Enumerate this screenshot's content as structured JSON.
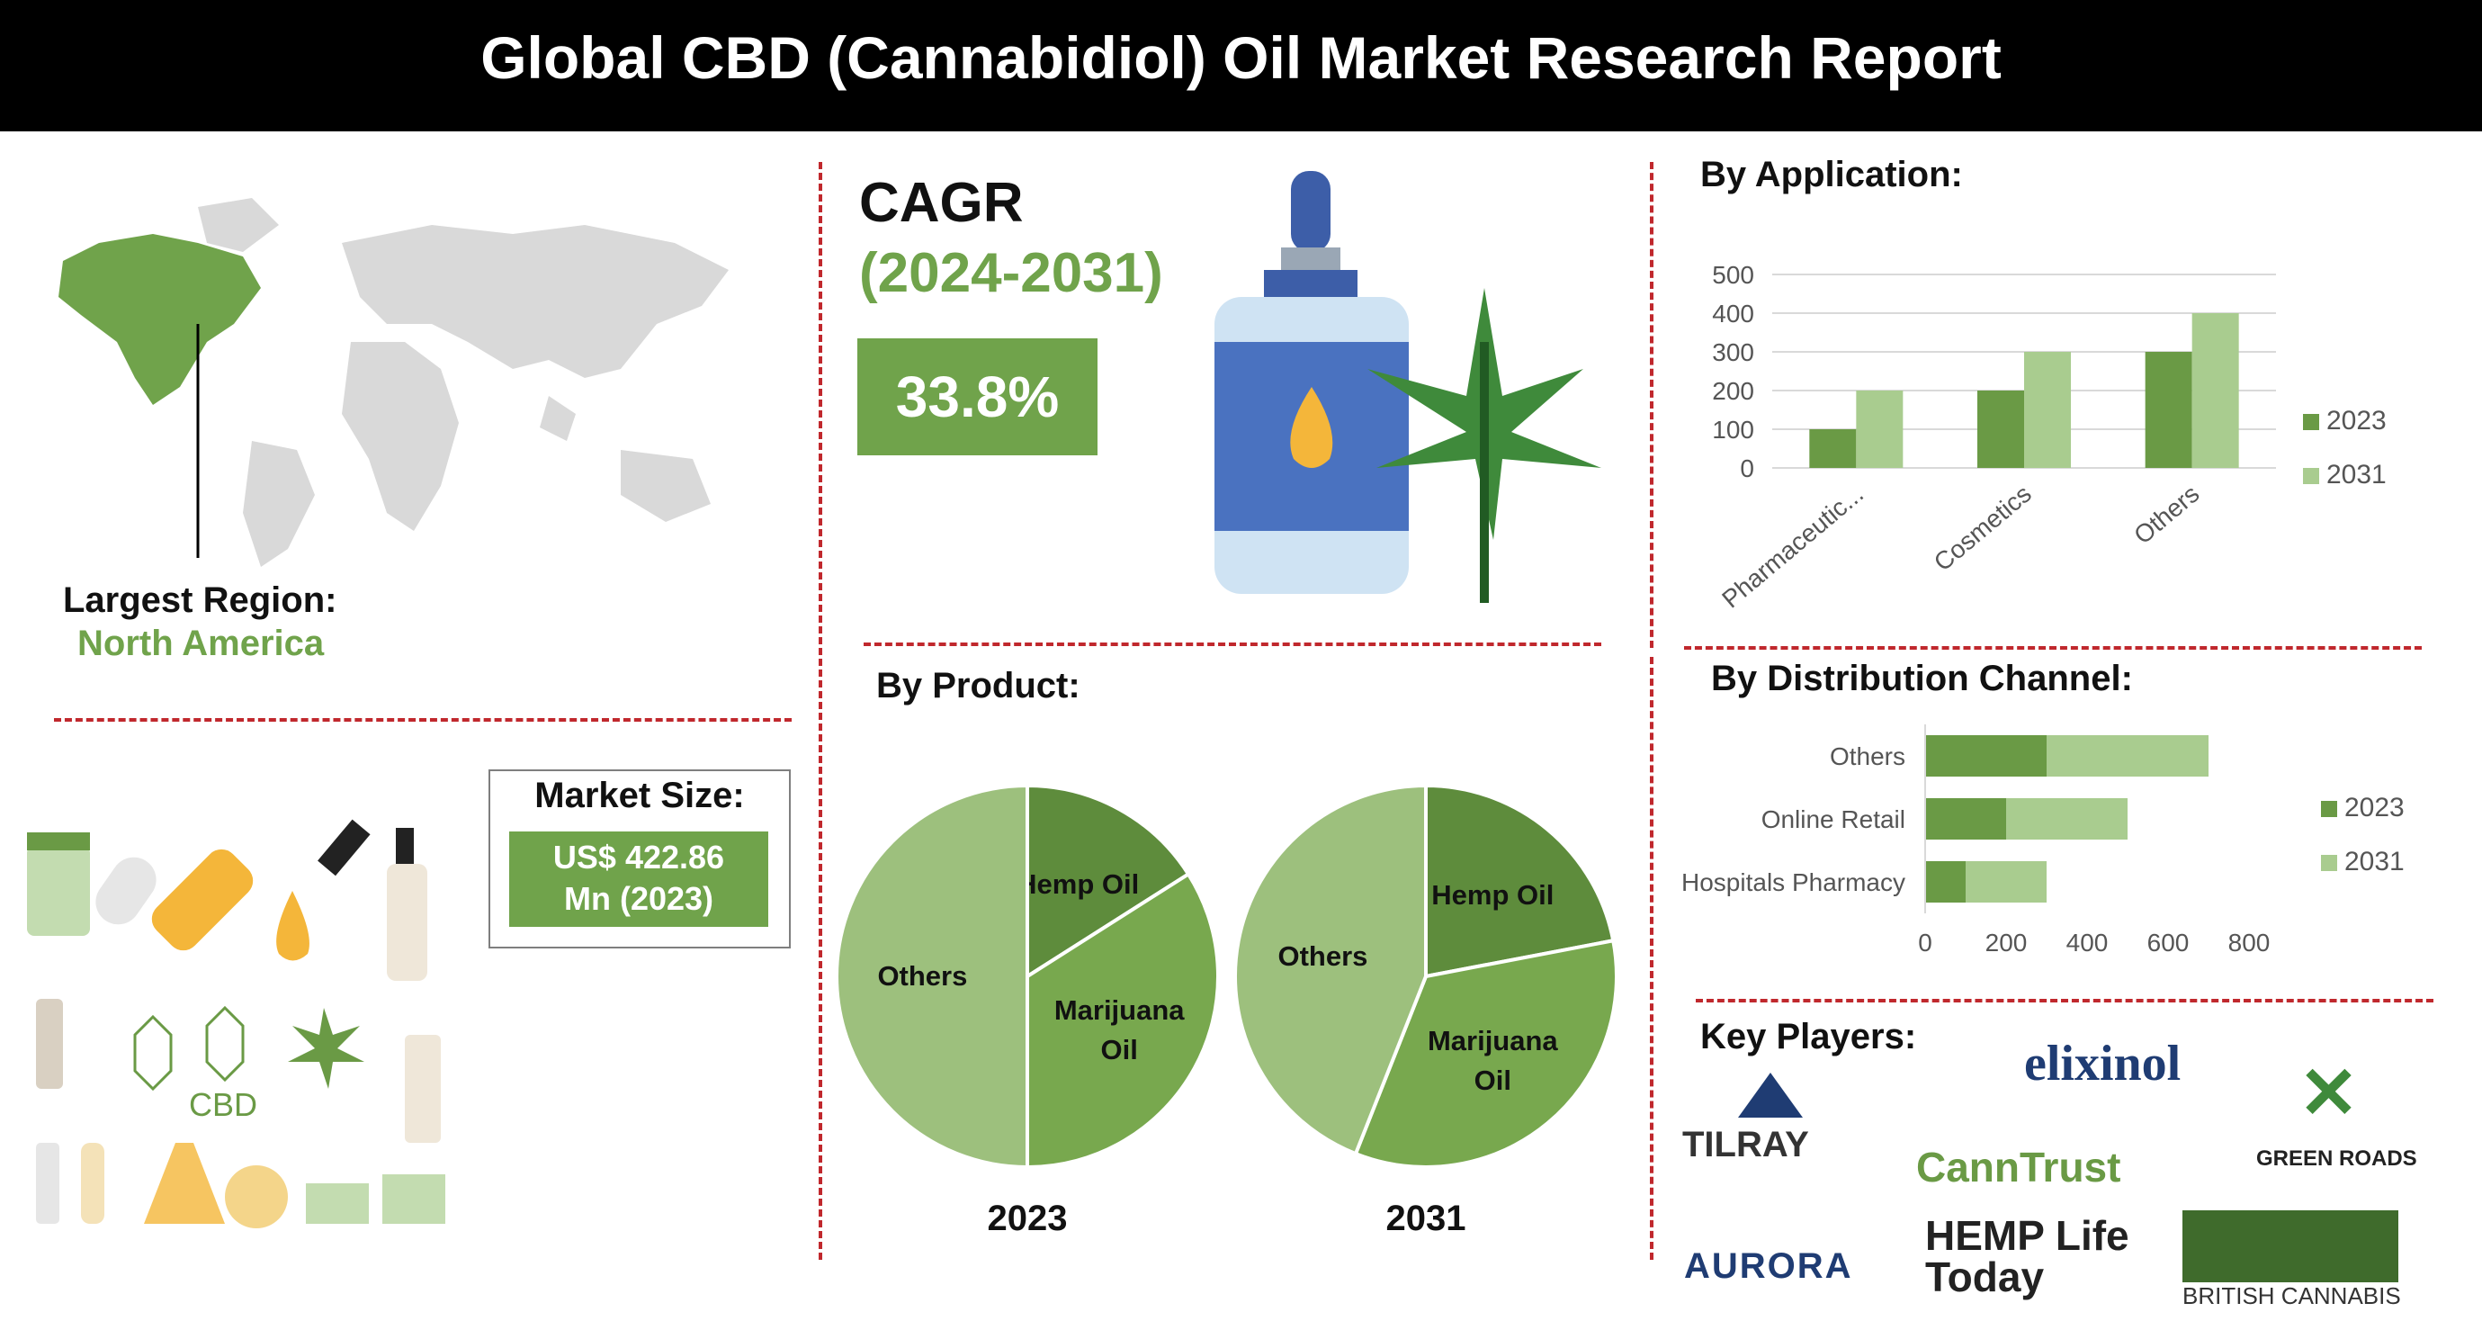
{
  "header": {
    "title": "Global CBD (Cannabidiol) Oil Market Research Report"
  },
  "region": {
    "label": "Largest Region:",
    "value": "North America"
  },
  "cagr": {
    "label": "CAGR",
    "period": "(2024-2031)",
    "value": "33.8%"
  },
  "market_size": {
    "label": "Market Size:",
    "value_line1": "US$ 422.86",
    "value_line2": "Mn (2023)"
  },
  "illustration": {
    "cbd_label": "CBD"
  },
  "colors": {
    "dark_green": "#6a9a45",
    "light_green": "#a9cc8f",
    "pie_dark": "#5e8c3c",
    "pie_mid": "#78a84e",
    "pie_light": "#9dc07d",
    "brand_green": "#70a34b",
    "divider_red": "#c0282d"
  },
  "by_application": {
    "title": "By Application:",
    "chart_data": {
      "type": "bar",
      "categories": [
        "Pharmaceutic...",
        "Cosmetics",
        "Others"
      ],
      "series": [
        {
          "name": "2023",
          "values": [
            100,
            200,
            300
          ]
        },
        {
          "name": "2031",
          "values": [
            200,
            300,
            400
          ]
        }
      ],
      "ylim": [
        0,
        500
      ],
      "yticks": [
        0,
        100,
        200,
        300,
        400,
        500
      ],
      "legend": "right",
      "grid": true
    }
  },
  "by_distribution": {
    "title": "By  Distribution Channel:",
    "chart_data": {
      "type": "bar",
      "orientation": "horizontal",
      "categories": [
        "Others",
        "Online Retail",
        "Hospitals Pharmacy"
      ],
      "series": [
        {
          "name": "2023",
          "values": [
            300,
            200,
            100
          ]
        },
        {
          "name": "2031",
          "values": [
            400,
            300,
            200
          ]
        }
      ],
      "stacked": true,
      "xlim": [
        0,
        800
      ],
      "xticks": [
        0,
        200,
        400,
        600,
        800
      ],
      "legend": "right"
    }
  },
  "by_product": {
    "title": "By Product:",
    "chart_data": [
      {
        "type": "pie",
        "year": "2023",
        "labels": [
          "Hemp Oil",
          "Marijuana Oil",
          "Others"
        ],
        "values": [
          16,
          34,
          50
        ]
      },
      {
        "type": "pie",
        "year": "2031",
        "labels": [
          "Hemp Oil",
          "Marijuana Oil",
          "Others"
        ],
        "values": [
          22,
          34,
          44
        ]
      }
    ]
  },
  "key_players": {
    "title": "Key Players:",
    "logos": [
      "elixinol",
      "TILRAY",
      "GREEN ROADS",
      "CannTrust",
      "AURORA",
      "HEMP Life Today",
      "BRITISH CANNABIS"
    ]
  }
}
